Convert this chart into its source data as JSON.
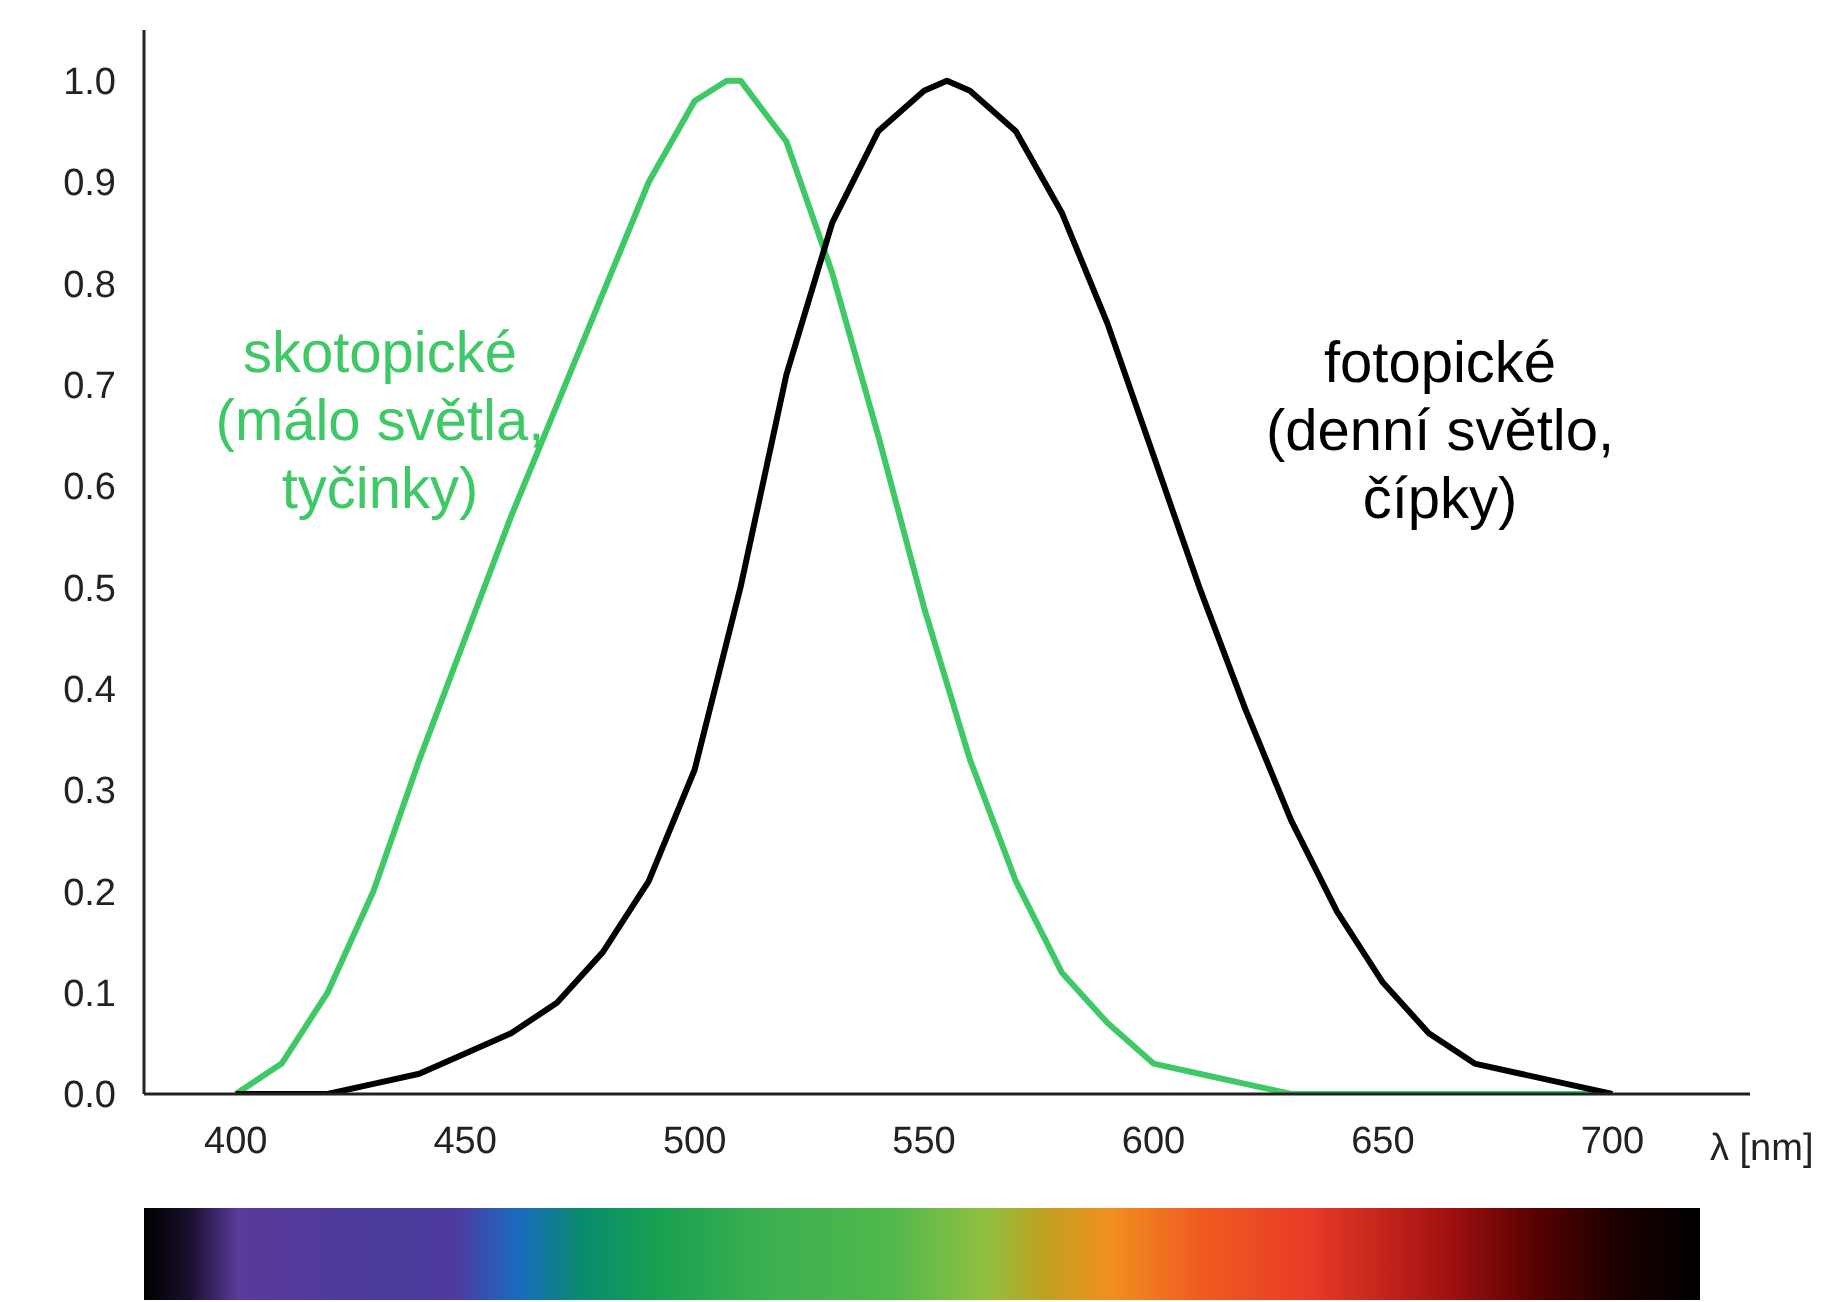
{
  "chart_data": {
    "type": "line",
    "xlabel": "λ [nm]",
    "xlim": [
      380,
      730
    ],
    "xticks": [
      400,
      450,
      500,
      550,
      600,
      650,
      700
    ],
    "ylim": [
      0,
      1.05
    ],
    "yticks": [
      {
        "value": 0,
        "label": "0.0"
      },
      {
        "value": 0.1,
        "label": "0.1"
      },
      {
        "value": 0.2,
        "label": "0.2"
      },
      {
        "value": 0.3,
        "label": "0.3"
      },
      {
        "value": 0.4,
        "label": "0.4"
      },
      {
        "value": 0.5,
        "label": "0.5"
      },
      {
        "value": 0.6,
        "label": "0.6"
      },
      {
        "value": 0.7,
        "label": "0.7"
      },
      {
        "value": 0.8,
        "label": "0.8"
      },
      {
        "value": 0.9,
        "label": "0.9"
      },
      {
        "value": 1.0,
        "label": "1.0"
      }
    ],
    "grid": false,
    "legend": false,
    "marker": "none",
    "line_style": "solid",
    "series": [
      {
        "name": "skotopické\n(málo světla,\ntyčinky)",
        "color": "#3ec866",
        "x": [
          400,
          410,
          420,
          430,
          440,
          450,
          460,
          470,
          480,
          490,
          500,
          507,
          510,
          520,
          530,
          540,
          550,
          560,
          570,
          580,
          590,
          600,
          610,
          620,
          630,
          640,
          650,
          670,
          700
        ],
        "values": [
          0.0,
          0.03,
          0.1,
          0.2,
          0.33,
          0.45,
          0.57,
          0.68,
          0.79,
          0.9,
          0.98,
          1.0,
          1.0,
          0.94,
          0.81,
          0.65,
          0.48,
          0.33,
          0.21,
          0.12,
          0.07,
          0.03,
          0.02,
          0.01,
          0.0,
          0.0,
          0.0,
          0.0,
          0.0
        ]
      },
      {
        "name": "fotopické\n(denní světlo,\nčípky)",
        "color": "#000000",
        "x": [
          400,
          410,
          420,
          430,
          440,
          450,
          460,
          470,
          480,
          490,
          500,
          510,
          520,
          530,
          540,
          550,
          555,
          560,
          570,
          580,
          590,
          600,
          610,
          620,
          630,
          640,
          650,
          660,
          670,
          680,
          690,
          700
        ],
        "values": [
          0.0,
          0.0,
          0.0,
          0.01,
          0.02,
          0.04,
          0.06,
          0.09,
          0.14,
          0.21,
          0.32,
          0.5,
          0.71,
          0.86,
          0.95,
          0.99,
          1.0,
          0.99,
          0.95,
          0.87,
          0.76,
          0.63,
          0.5,
          0.38,
          0.27,
          0.18,
          0.11,
          0.06,
          0.03,
          0.02,
          0.01,
          0.0
        ]
      }
    ]
  }
}
